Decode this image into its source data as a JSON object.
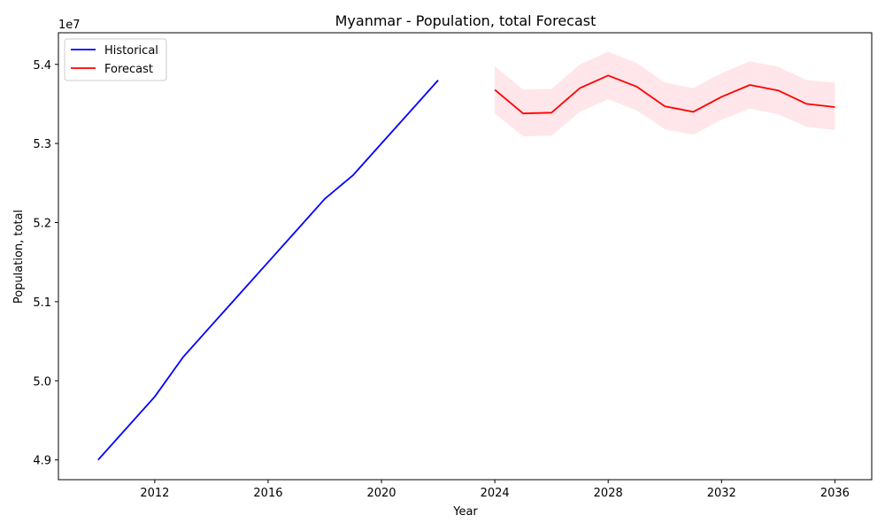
{
  "chart_data": {
    "type": "line",
    "title": "Myanmar - Population, total Forecast",
    "xlabel": "Year",
    "ylabel": "Population, total",
    "y_scale_label": "1e7",
    "xlim": [
      2008.6,
      2037.3
    ],
    "ylim": [
      48750000,
      54400000
    ],
    "x_ticks": [
      2012,
      2016,
      2020,
      2024,
      2028,
      2032,
      2036
    ],
    "y_ticks": [
      49000000,
      50000000,
      51000000,
      52000000,
      53000000,
      54000000
    ],
    "y_tick_labels": [
      "4.9",
      "5.0",
      "5.1",
      "5.2",
      "5.3",
      "5.4"
    ],
    "grid": false,
    "legend_position": "top-left",
    "series": [
      {
        "name": "Historical",
        "color": "#0000ff",
        "x": [
          2010,
          2011,
          2012,
          2013,
          2014,
          2015,
          2016,
          2017,
          2018,
          2019,
          2020,
          2021,
          2022
        ],
        "y": [
          49000000,
          49400000,
          49800000,
          50300000,
          50700000,
          51100000,
          51500000,
          51900000,
          52300000,
          52600000,
          53000000,
          53400000,
          53800000
        ]
      },
      {
        "name": "Forecast",
        "color": "#ff0000",
        "band_color": "#ffc0cb",
        "x": [
          2024,
          2025,
          2026,
          2027,
          2028,
          2029,
          2030,
          2031,
          2032,
          2033,
          2034,
          2035,
          2036
        ],
        "y": [
          53680000,
          53380000,
          53390000,
          53700000,
          53860000,
          53720000,
          53470000,
          53400000,
          53590000,
          53740000,
          53670000,
          53500000,
          53460000
        ],
        "lower": [
          53380000,
          53090000,
          53100000,
          53400000,
          53560000,
          53420000,
          53180000,
          53110000,
          53300000,
          53440000,
          53370000,
          53210000,
          53170000
        ],
        "upper": [
          53980000,
          53680000,
          53690000,
          54000000,
          54160000,
          54020000,
          53770000,
          53700000,
          53890000,
          54040000,
          53970000,
          53800000,
          53770000
        ]
      }
    ]
  }
}
